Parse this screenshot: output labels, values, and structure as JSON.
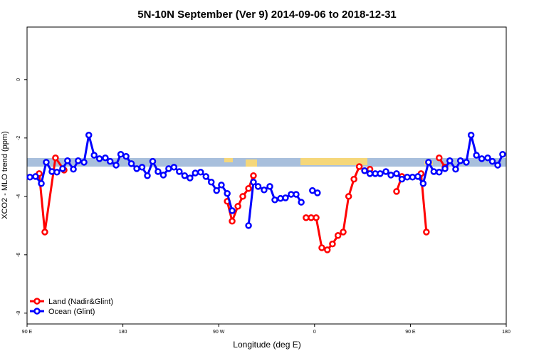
{
  "chart_data": {
    "type": "line",
    "title": "5N-10N September (Ver 9)   2014-09-06 to 2018-12-31",
    "x_label": "Longitude (deg E)",
    "y_label": "XCO2 - MLO trend (ppm)",
    "xlim": [
      90,
      540
    ],
    "xticks": [
      {
        "value": 90,
        "label": "90 E"
      },
      180,
      {
        "value": 270,
        "label": "90 W"
      },
      {
        "value": 360,
        "label": "0"
      },
      {
        "value": 450,
        "label": "90 E"
      },
      180
    ],
    "ylim": [
      -8.37,
      1.8
    ],
    "yticks": [
      0,
      -2,
      -4,
      -6,
      -8
    ],
    "legend": "bottomleft",
    "series": [
      {
        "name": "Land (Nadir&Glint)",
        "color": "#ff0000",
        "x": [
          101.4,
          106.7,
          116.7,
          124.8,
          null,
          278,
          282.6,
          288,
          292.6,
          298,
          302.6,
          null,
          352,
          356.8,
          361.5,
          366.8,
          372,
          376.8,
          382,
          386.9,
          392,
          397,
          402,
          407,
          412,
          null,
          437,
          442,
          null,
          460,
          465,
          null,
          477,
          482.5
        ],
        "values": [
          -3.22,
          -5.22,
          -2.68,
          -3.1,
          null,
          -4.17,
          -4.85,
          -4.34,
          -4,
          -3.73,
          -3.29,
          null,
          -4.73,
          -4.73,
          -4.73,
          -5.76,
          -5.83,
          -5.63,
          -5.34,
          -5.22,
          -4,
          -3.41,
          -2.98,
          -3.12,
          -3.07,
          null,
          -3.83,
          -3.32,
          null,
          -3.22,
          -5.22,
          null,
          -2.68,
          -3
        ]
      },
      {
        "name": "Ocean (Glint)",
        "color": "#0000ff",
        "x": [
          92.7,
          98,
          103.4,
          108,
          113.4,
          118,
          123.4,
          128,
          133.5,
          138,
          143.5,
          148,
          153,
          158,
          163.5,
          168,
          173.6,
          178,
          183,
          188,
          193,
          198,
          203,
          208,
          213,
          218,
          223,
          228,
          233,
          238,
          243,
          248,
          253,
          258,
          263,
          268,
          272.5,
          278,
          282.6,
          null,
          298,
          302.6,
          307,
          312.6,
          318,
          322.7,
          328,
          332.7,
          338,
          342.7,
          347.5,
          null,
          358,
          362.7,
          null,
          407,
          412,
          417,
          421.6,
          427,
          431.7,
          437,
          442,
          447,
          452,
          457,
          462,
          467,
          472,
          477,
          482.5,
          487,
          492.5,
          497,
          502.5,
          507,
          512,
          517,
          522.6,
          527,
          532,
          536.6
        ],
        "values": [
          -3.34,
          -3.32,
          -3.56,
          -2.83,
          -3.15,
          -3.17,
          -3.05,
          -2.78,
          -3.07,
          -2.78,
          -2.83,
          -1.9,
          -2.59,
          -2.71,
          -2.68,
          -2.8,
          -2.93,
          -2.56,
          -2.63,
          -2.88,
          -3.05,
          -3,
          -3.29,
          -2.8,
          -3.15,
          -3.27,
          -3.05,
          -3,
          -3.15,
          -3.29,
          -3.37,
          -3.2,
          -3.17,
          -3.32,
          -3.51,
          -3.8,
          -3.61,
          -3.9,
          -4.49,
          null,
          -5,
          -3.51,
          -3.66,
          -3.78,
          -3.66,
          -4.12,
          -4.07,
          -4.05,
          -3.93,
          -3.93,
          -4.2,
          null,
          -3.8,
          -3.88,
          null,
          -3.12,
          -3.22,
          -3.22,
          -3.22,
          -3.15,
          -3.27,
          -3.22,
          -3.41,
          -3.34,
          -3.34,
          -3.32,
          -3.56,
          -2.83,
          -3.15,
          -3.17,
          -3.05,
          -2.78,
          -3.07,
          -2.78,
          -2.83,
          -1.9,
          -2.59,
          -2.71,
          -2.68,
          -2.8,
          -2.93,
          -2.56
        ]
      }
    ]
  }
}
